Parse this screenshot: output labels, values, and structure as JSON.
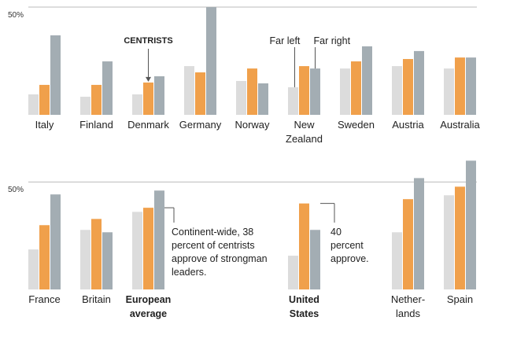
{
  "chart_data": [
    {
      "type": "bar",
      "categories": [
        "Italy",
        "Finland",
        "Denmark",
        "Germany",
        "Norway",
        "New Zealand",
        "Sweden",
        "Austria",
        "Australia"
      ],
      "series": [
        {
          "name": "Far left",
          "color": "#dcdcdc",
          "values": [
            9.5,
            8.4,
            9.5,
            22.6,
            15.7,
            12.8,
            21.5,
            22.6,
            21.5
          ]
        },
        {
          "name": "CENTRISTS",
          "color": "#f0a04b",
          "values": [
            13.9,
            13.9,
            15,
            19.7,
            21.5,
            22.6,
            24.8,
            25.9,
            26.6
          ]
        },
        {
          "name": "Far right",
          "color": "#a3adb3",
          "values": [
            36.9,
            24.8,
            17.9,
            50,
            14.6,
            21.5,
            31.8,
            29.6,
            26.6
          ]
        }
      ],
      "ylim": [
        0,
        50
      ],
      "yticks": [
        {
          "value": 50,
          "label": "50%"
        }
      ],
      "grid": true
    },
    {
      "type": "bar",
      "categories": [
        "France",
        "Britain",
        "European average",
        "United States",
        "Nether-lands",
        "Spain"
      ],
      "series": [
        {
          "color": "#dcdcdc",
          "values": [
            18.6,
            27.7,
            36.1,
            15.7,
            26.6,
            43.8
          ]
        },
        {
          "color": "#f0a04b",
          "values": [
            29.9,
            32.8,
            38,
            40,
            42,
            47.8
          ]
        },
        {
          "color": "#a3adb3",
          "values": [
            44.2,
            26.6,
            46,
            27.7,
            51.8,
            59.9
          ]
        }
      ],
      "annotations": [
        "Continent-wide, 38 percent of centrists approve of strongman leaders.",
        "40 percent approve."
      ],
      "ylim": [
        0,
        60
      ],
      "yticks": [
        {
          "value": 50,
          "label": "50%"
        }
      ],
      "grid": true
    }
  ]
}
